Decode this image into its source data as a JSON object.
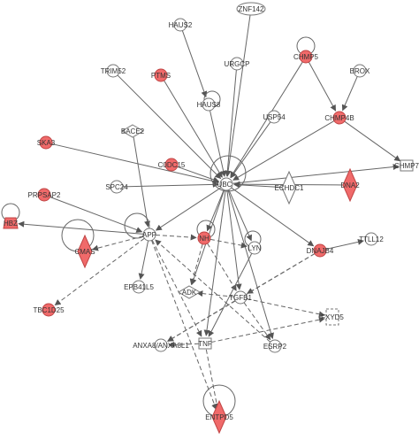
{
  "colors": {
    "highlight": "#f06a6a",
    "highlight_stroke": "#c04444",
    "plain_fill": "#ffffff",
    "plain_stroke": "#777777",
    "edge": "#666666",
    "label": "#333333"
  },
  "nodes": [
    {
      "id": "ZNF142",
      "label": "ZNF142",
      "shape": "ellipse",
      "highlight": false
    },
    {
      "id": "HAUS2",
      "label": "HAUS2",
      "shape": "circle",
      "highlight": false
    },
    {
      "id": "CHMP5",
      "label": "CHMP5",
      "shape": "circle",
      "highlight": true
    },
    {
      "id": "TRIM52",
      "label": "TRIM52",
      "shape": "circle",
      "highlight": false
    },
    {
      "id": "PTMS",
      "label": "PTMS",
      "shape": "circle",
      "highlight": true
    },
    {
      "id": "URGCP",
      "label": "URGCP",
      "shape": "circle",
      "highlight": false
    },
    {
      "id": "BROX",
      "label": "BROX",
      "shape": "circle",
      "highlight": false
    },
    {
      "id": "HAUS8",
      "label": "HAUS8",
      "shape": "circle",
      "highlight": false
    },
    {
      "id": "USP54",
      "label": "USP54",
      "shape": "circle",
      "highlight": false
    },
    {
      "id": "CHMP4B",
      "label": "CHMP4B",
      "shape": "circle",
      "highlight": true
    },
    {
      "id": "BACE2",
      "label": "BACE2",
      "shape": "diamond",
      "highlight": false
    },
    {
      "id": "SKA3",
      "label": "SKA3",
      "shape": "circle",
      "highlight": true
    },
    {
      "id": "CDDC15",
      "label": "C0DC15",
      "shape": "circle",
      "highlight": true
    },
    {
      "id": "CHMP7",
      "label": "CHMP7",
      "shape": "rect",
      "highlight": false
    },
    {
      "id": "SPC24",
      "label": "SPC24",
      "shape": "circle",
      "highlight": false
    },
    {
      "id": "UBC",
      "label": "UBC",
      "shape": "circle",
      "highlight": false
    },
    {
      "id": "ECHDC1",
      "label": "ECHDC1",
      "shape": "diamond",
      "highlight": false
    },
    {
      "id": "DNA2",
      "label": "DNA2",
      "shape": "diamond",
      "highlight": true
    },
    {
      "id": "PRPSAP2",
      "label": "PRPSAP2",
      "shape": "circle",
      "highlight": true
    },
    {
      "id": "HBZ",
      "label": "HBZ",
      "shape": "trap",
      "highlight": true
    },
    {
      "id": "APP",
      "label": "APP",
      "shape": "circle",
      "highlight": false
    },
    {
      "id": "MHC",
      "label": "NH",
      "shape": "circle",
      "highlight": true
    },
    {
      "id": "LYN",
      "label": "LYN",
      "shape": "circle",
      "highlight": false
    },
    {
      "id": "TTLL12",
      "label": "TTLL12",
      "shape": "circle",
      "highlight": false
    },
    {
      "id": "CMAS",
      "label": "CMAS",
      "shape": "diamond",
      "highlight": true
    },
    {
      "id": "DNAJB4",
      "label": "DNAJB4",
      "shape": "circle",
      "highlight": true
    },
    {
      "id": "EPB41L5",
      "label": "EPB41L5",
      "shape": "circle",
      "highlight": false
    },
    {
      "id": "ADK",
      "label": "ADK",
      "shape": "diamond",
      "highlight": false
    },
    {
      "id": "TGFB1",
      "label": "TGFB1",
      "shape": "circle",
      "highlight": false
    },
    {
      "id": "TBC1D25",
      "label": "TBC1D25",
      "shape": "circle",
      "highlight": true
    },
    {
      "id": "FXYD5",
      "label": "FXYD5",
      "shape": "rect",
      "highlight": false
    },
    {
      "id": "ANXA8",
      "label": "ANXA8/ANXA8L1",
      "shape": "circle",
      "highlight": false
    },
    {
      "id": "TNF",
      "label": "TNF",
      "shape": "rect",
      "highlight": false
    },
    {
      "id": "ESRP2",
      "label": "ESRP2",
      "shape": "circle",
      "highlight": false
    },
    {
      "id": "ENTPD5",
      "label": "ENTPD5",
      "shape": "diamond",
      "highlight": true
    }
  ],
  "edges": [
    {
      "from": "ZNF142",
      "to": "UBC",
      "dashed": false
    },
    {
      "from": "HAUS2",
      "to": "HAUS8",
      "dashed": false
    },
    {
      "from": "TRIM52",
      "to": "UBC",
      "dashed": false
    },
    {
      "from": "PTMS",
      "to": "UBC",
      "dashed": false
    },
    {
      "from": "URGCP",
      "to": "UBC",
      "dashed": false
    },
    {
      "from": "CHMP5",
      "to": "UBC",
      "dashed": false
    },
    {
      "from": "CHMP5",
      "to": "CHMP4B",
      "dashed": false
    },
    {
      "from": "BROX",
      "to": "CHMP4B",
      "dashed": false
    },
    {
      "from": "HAUS8",
      "to": "UBC",
      "dashed": false
    },
    {
      "from": "USP54",
      "to": "UBC",
      "dashed": false
    },
    {
      "from": "CHMP4B",
      "to": "UBC",
      "dashed": false
    },
    {
      "from": "CHMP4B",
      "to": "CHMP7",
      "dashed": false
    },
    {
      "from": "BACE2",
      "to": "APP",
      "dashed": false
    },
    {
      "from": "SKA3",
      "to": "UBC",
      "dashed": false
    },
    {
      "from": "CDDC15",
      "to": "UBC",
      "dashed": false
    },
    {
      "from": "UBC",
      "to": "CHMP7",
      "dashed": false
    },
    {
      "from": "SPC24",
      "to": "UBC",
      "dashed": false
    },
    {
      "from": "ECHDC1",
      "to": "UBC",
      "dashed": false
    },
    {
      "from": "DNA2",
      "to": "UBC",
      "dashed": false
    },
    {
      "from": "PRPSAP2",
      "to": "APP",
      "dashed": false
    },
    {
      "from": "APP",
      "to": "HBZ",
      "dashed": false
    },
    {
      "from": "UBC",
      "to": "APP",
      "dashed": false
    },
    {
      "from": "UBC",
      "to": "MHC",
      "dashed": false
    },
    {
      "from": "UBC",
      "to": "LYN",
      "dashed": false
    },
    {
      "from": "UBC",
      "to": "DNAJB4",
      "dashed": false
    },
    {
      "from": "DNAJB4",
      "to": "TTLL12",
      "dashed": false
    },
    {
      "from": "UBC",
      "to": "TGFB1",
      "dashed": false
    },
    {
      "from": "UBC",
      "to": "TNF",
      "dashed": false
    },
    {
      "from": "UBC",
      "to": "ESRP2",
      "dashed": false
    },
    {
      "from": "UBC",
      "to": "ADK",
      "dashed": false
    },
    {
      "from": "APP",
      "to": "CMAS",
      "dashed": true
    },
    {
      "from": "APP",
      "to": "TBC1D25",
      "dashed": true
    },
    {
      "from": "APP",
      "to": "EPB41L5",
      "dashed": false
    },
    {
      "from": "APP",
      "to": "MHC",
      "dashed": true
    },
    {
      "from": "APP",
      "to": "ENTPD5",
      "dashed": true
    },
    {
      "from": "APP",
      "to": "TNF",
      "dashed": true
    },
    {
      "from": "MHC",
      "to": "LYN",
      "dashed": true
    },
    {
      "from": "MHC",
      "to": "ADK",
      "dashed": true
    },
    {
      "from": "MHC",
      "to": "TGFB1",
      "dashed": true
    },
    {
      "from": "DNAJB4",
      "to": "TGFB1",
      "dashed": true
    },
    {
      "from": "TGFB1",
      "to": "ADK",
      "dashed": true
    },
    {
      "from": "TGFB1",
      "to": "FXYD5",
      "dashed": true
    },
    {
      "from": "TGFB1",
      "to": "ANXA8",
      "dashed": true
    },
    {
      "from": "TGFB1",
      "to": "ESRP2",
      "dashed": true
    },
    {
      "from": "TNF",
      "to": "ANXA8",
      "dashed": true
    },
    {
      "from": "TNF",
      "to": "ENTPD5",
      "dashed": true
    },
    {
      "from": "TNF",
      "to": "FXYD5",
      "dashed": true
    },
    {
      "from": "LYN",
      "to": "TNF",
      "dashed": false
    },
    {
      "from": "ESRP2",
      "to": "APP",
      "dashed": true
    },
    {
      "from": "DNAJB4",
      "to": "ANXA8",
      "dashed": true
    }
  ],
  "self_loops": [
    "CHMP5",
    "HBZ",
    "CMAS",
    "APP",
    "UBC",
    "MHC",
    "LYN",
    "HAUS8",
    "ENTPD5"
  ]
}
